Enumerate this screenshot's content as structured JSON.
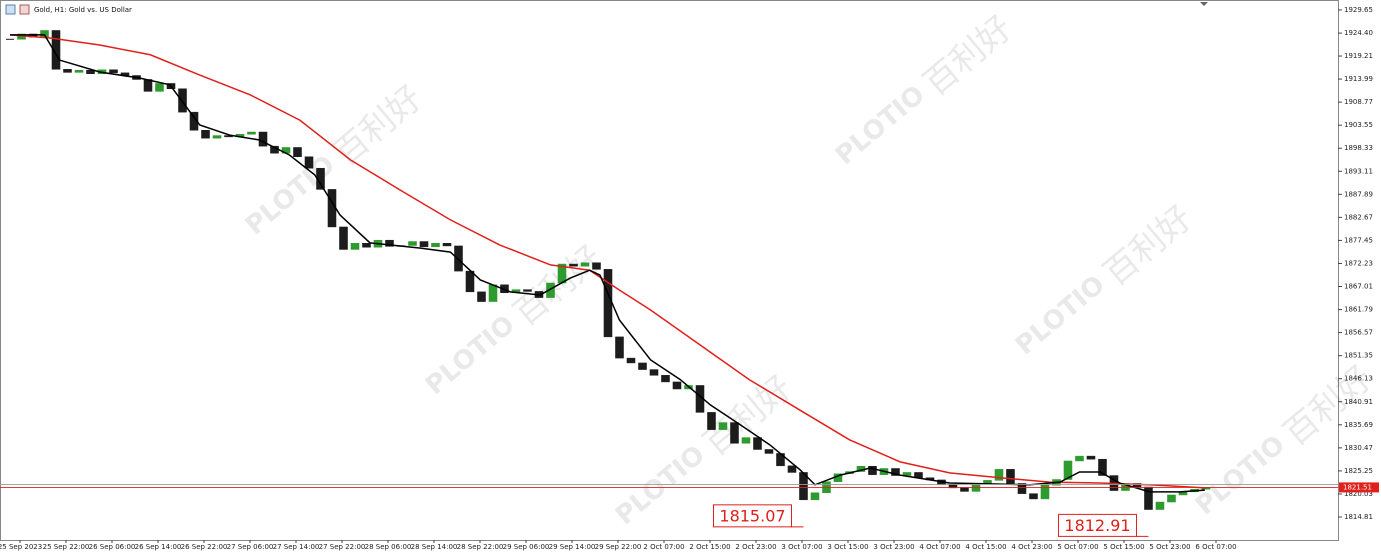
{
  "window": {
    "title": "Gold, H1: Gold vs. US Dollar"
  },
  "chart_data": {
    "type": "candlestick",
    "closes": [
      1923.0,
      1924.2,
      1923.5,
      1925.0,
      1916.2,
      1915.5,
      1916.0,
      1915.2,
      1916.1,
      1915.4,
      1914.8,
      1913.9,
      1911.2,
      1913.0,
      1911.8,
      1906.5,
      1902.4,
      1900.6,
      1901.2,
      1900.9,
      1901.5,
      1902.0,
      1898.8,
      1897.2,
      1898.5,
      1896.4,
      1893.8,
      1889.0,
      1880.5,
      1875.4,
      1876.8,
      1875.9,
      1877.5,
      1876.1,
      1876.3,
      1877.2,
      1876.0,
      1876.8,
      1876.2,
      1870.5,
      1865.8,
      1863.6,
      1867.4,
      1865.6,
      1866.3,
      1865.9,
      1864.5,
      1867.8,
      1872.1,
      1871.6,
      1872.4,
      1870.9,
      1855.6,
      1850.8,
      1849.7,
      1848.2,
      1846.9,
      1845.4,
      1843.8,
      1844.6,
      1838.5,
      1834.6,
      1836.2,
      1831.5,
      1832.8,
      1830.1,
      1829.2,
      1826.4,
      1824.9,
      1818.7,
      1820.3,
      1822.8,
      1824.6,
      1825.1,
      1826.3,
      1824.4,
      1825.8,
      1824.2,
      1824.9,
      1823.7,
      1823.2,
      1822.1,
      1821.4,
      1820.6,
      1822.3,
      1823.1,
      1825.6,
      1822.4,
      1820.1,
      1818.9,
      1822.0,
      1823.3,
      1827.5,
      1828.6,
      1827.9,
      1824.2,
      1820.8,
      1822.4,
      1821.6,
      1816.5,
      1818.2,
      1819.8,
      1820.5,
      1821.1,
      1821.5
    ],
    "up_color": "#2e9b2e",
    "down_color": "#1c1c1c",
    "xlim": [
      -0.87,
      115.48
    ],
    "ylim": [
      1809.6,
      1931.9
    ],
    "grid": false,
    "xticks": [
      {
        "value": 0.87,
        "label": "25 Sep 2023"
      },
      {
        "value": 4.87,
        "label": "25 Sep 22:00"
      },
      {
        "value": 8.87,
        "label": "26 Sep 06:00"
      },
      {
        "value": 12.87,
        "label": "26 Sep 14:00"
      },
      {
        "value": 16.87,
        "label": "26 Sep 22:00"
      },
      {
        "value": 20.87,
        "label": "27 Sep 06:00"
      },
      {
        "value": 24.87,
        "label": "27 Sep 14:00"
      },
      {
        "value": 28.87,
        "label": "27 Sep 22:00"
      },
      {
        "value": 32.87,
        "label": "28 Sep 06:00"
      },
      {
        "value": 36.87,
        "label": "28 Sep 14:00"
      },
      {
        "value": 40.87,
        "label": "28 Sep 22:00"
      },
      {
        "value": 44.87,
        "label": "29 Sep 06:00"
      },
      {
        "value": 48.87,
        "label": "29 Sep 14:00"
      },
      {
        "value": 52.87,
        "label": "29 Sep 22:00"
      },
      {
        "value": 56.87,
        "label": "2 Oct 07:00"
      },
      {
        "value": 60.87,
        "label": "2 Oct 15:00"
      },
      {
        "value": 64.87,
        "label": "2 Oct 23:00"
      },
      {
        "value": 68.87,
        "label": "3 Oct 07:00"
      },
      {
        "value": 72.87,
        "label": "3 Oct 15:00"
      },
      {
        "value": 76.87,
        "label": "3 Oct 23:00"
      },
      {
        "value": 80.87,
        "label": "4 Oct 07:00"
      },
      {
        "value": 84.87,
        "label": "4 Oct 15:00"
      },
      {
        "value": 88.87,
        "label": "4 Oct 23:00"
      },
      {
        "value": 92.87,
        "label": "5 Oct 07:00"
      },
      {
        "value": 96.87,
        "label": "5 Oct 15:00"
      },
      {
        "value": 100.87,
        "label": "5 Oct 23:00"
      },
      {
        "value": 104.87,
        "label": "6 Oct 07:00"
      }
    ],
    "yticks": [
      {
        "value": 1929.65,
        "label": "1929.65"
      },
      {
        "value": 1924.4,
        "label": "1924.40"
      },
      {
        "value": 1919.21,
        "label": "1919.21"
      },
      {
        "value": 1913.99,
        "label": "1913.99"
      },
      {
        "value": 1908.77,
        "label": "1908.77"
      },
      {
        "value": 1903.55,
        "label": "1903.55"
      },
      {
        "value": 1898.33,
        "label": "1898.33"
      },
      {
        "value": 1893.11,
        "label": "1893.11"
      },
      {
        "value": 1887.89,
        "label": "1887.89"
      },
      {
        "value": 1882.67,
        "label": "1882.67"
      },
      {
        "value": 1877.45,
        "label": "1877.45"
      },
      {
        "value": 1872.23,
        "label": "1872.23"
      },
      {
        "value": 1867.01,
        "label": "1867.01"
      },
      {
        "value": 1861.79,
        "label": "1861.79"
      },
      {
        "value": 1856.57,
        "label": "1856.57"
      },
      {
        "value": 1851.35,
        "label": "1851.35"
      },
      {
        "value": 1846.13,
        "label": "1846.13"
      },
      {
        "value": 1840.91,
        "label": "1840.91"
      },
      {
        "value": 1835.69,
        "label": "1835.69"
      },
      {
        "value": 1830.47,
        "label": "1830.47"
      },
      {
        "value": 1825.25,
        "label": "1825.25"
      },
      {
        "value": 1820.03,
        "label": "1820.03"
      },
      {
        "value": 1814.81,
        "label": "1814.81"
      }
    ],
    "lines": [
      {
        "color": "#e0201b",
        "x": [
          0,
          3.5,
          7.8,
          12.2,
          16.5,
          20.9,
          25.2,
          29.6,
          33.9,
          38.3,
          42.6,
          47,
          50.4,
          53,
          55.7,
          60,
          64.3,
          68.7,
          73,
          77.4,
          81.7,
          86.1,
          90.4,
          94.8,
          99.1,
          103.9
        ],
        "values": [
          1924.0,
          1923.3,
          1921.7,
          1919.5,
          1914.9,
          1910.4,
          1904.7,
          1895.7,
          1888.9,
          1882.1,
          1876.4,
          1871.9,
          1870.7,
          1866.2,
          1861.7,
          1853.8,
          1845.9,
          1839.0,
          1832.3,
          1827.3,
          1824.8,
          1823.7,
          1822.7,
          1822.5,
          1822.1,
          1821.4
        ]
      },
      {
        "color": "#000000",
        "x": [
          0,
          3,
          4.3,
          7.8,
          11.3,
          13.9,
          16.5,
          19.1,
          21.7,
          24.3,
          26.5,
          28.7,
          31.3,
          35.7,
          38.3,
          40.9,
          43.5,
          46.1,
          48.7,
          50.4,
          51.3,
          53,
          55.7,
          58.3,
          60.9,
          63.5,
          66.1,
          68.7,
          70,
          72.2,
          74.8,
          77.4,
          81.7,
          85.2,
          88.7,
          91.3,
          93,
          94.8,
          96.5,
          99.1,
          101.7,
          103.9
        ],
        "values": [
          1924.0,
          1924.0,
          1918.3,
          1915.6,
          1914.2,
          1912.7,
          1903.6,
          1901.3,
          1900.2,
          1896.8,
          1892.3,
          1883.2,
          1876.9,
          1875.7,
          1874.8,
          1868.5,
          1865.8,
          1865.1,
          1868.9,
          1870.7,
          1869.6,
          1859.4,
          1850.4,
          1845.9,
          1840.2,
          1835.7,
          1831.1,
          1825.5,
          1822.1,
          1824.3,
          1825.9,
          1824.3,
          1822.5,
          1822.3,
          1822.1,
          1822.7,
          1825.0,
          1825.0,
          1822.5,
          1820.5,
          1820.5,
          1820.9
        ]
      }
    ],
    "price_line": {
      "value": 1821.51,
      "color": "#e0201b"
    },
    "annotations": [
      {
        "value": 1815.07,
        "x": 69
      },
      {
        "value": 1812.91,
        "x": 99
      }
    ],
    "watermark": [
      "PLOTIO",
      "百利好"
    ]
  }
}
